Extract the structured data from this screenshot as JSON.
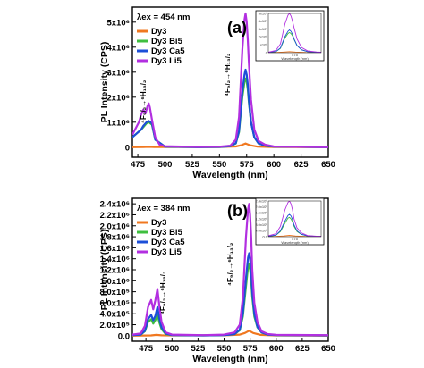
{
  "colors": {
    "Dy3": "#f07820",
    "Dy3 Bi5": "#3fbf3f",
    "Dy3 Ca5": "#1c4fd8",
    "Dy3 Li5": "#b22fe0"
  },
  "chart_data": [
    {
      "type": "line",
      "panel_label": "(a)",
      "excitation_label": "λex = 454 nm",
      "xlabel": "Wavelength (nm)",
      "ylabel": "PL Intensity (CPS)",
      "xlim": [
        470,
        650
      ],
      "ylim": [
        -400000,
        5600000
      ],
      "x_ticks": [
        "475",
        "500",
        "525",
        "550",
        "575",
        "600",
        "625",
        "650"
      ],
      "x_tick_values": [
        475,
        500,
        525,
        550,
        575,
        600,
        625,
        650
      ],
      "y_ticks": [
        "0",
        "1x10⁶",
        "2x10⁶",
        "3x10⁶",
        "4x10⁶",
        "5x10⁶"
      ],
      "y_tick_values": [
        0,
        1000000,
        2000000,
        3000000,
        4000000,
        5000000
      ],
      "legend": [
        "Dy3",
        "Dy3 Bi5",
        "Dy3 Ca5",
        "Dy3 Li5"
      ],
      "legend_position": "top-left",
      "annotations": [
        {
          "text": "⁴F₉/₂→⁶H₁₅/₂",
          "x": 485
        },
        {
          "text": "⁴F₉/₂→⁶H₁₃/₂",
          "x": 574
        }
      ],
      "series": [
        {
          "name": "Dy3",
          "x": [
            470,
            480,
            485,
            490,
            500,
            550,
            565,
            570,
            574,
            578,
            585,
            600,
            650
          ],
          "y": [
            0,
            5000,
            15000,
            8000,
            5000,
            8000,
            30000,
            80000,
            150000,
            80000,
            20000,
            5000,
            0
          ]
        },
        {
          "name": "Dy3 Bi5",
          "x": [
            470,
            478,
            480,
            483,
            485,
            488,
            491,
            500,
            530,
            550,
            560,
            565,
            568,
            571,
            573,
            574,
            575,
            576,
            577,
            579,
            582,
            586,
            592,
            600,
            650
          ],
          "y": [
            400000,
            700000,
            800000,
            950000,
            1000000,
            900000,
            300000,
            20000,
            0,
            10000,
            40000,
            150000,
            600000,
            2000000,
            2600000,
            2750000,
            2600000,
            2300000,
            1800000,
            1000000,
            400000,
            150000,
            60000,
            20000,
            0
          ]
        },
        {
          "name": "Dy3 Ca5",
          "x": [
            470,
            478,
            480,
            483,
            485,
            488,
            491,
            500,
            530,
            550,
            560,
            565,
            568,
            571,
            573,
            574,
            575,
            576,
            577,
            579,
            582,
            586,
            592,
            600,
            650
          ],
          "y": [
            400000,
            700000,
            850000,
            1000000,
            1050000,
            950000,
            300000,
            20000,
            0,
            10000,
            40000,
            160000,
            650000,
            2200000,
            2900000,
            3100000,
            2900000,
            2500000,
            1900000,
            1000000,
            400000,
            150000,
            60000,
            20000,
            0
          ]
        },
        {
          "name": "Dy3 Li5",
          "x": [
            470,
            476,
            478,
            480,
            482,
            484,
            485,
            486,
            488,
            491,
            495,
            500,
            530,
            550,
            560,
            565,
            568,
            571,
            573,
            574,
            575,
            576,
            577,
            579,
            582,
            586,
            592,
            600,
            650
          ],
          "y": [
            500000,
            1000000,
            1300000,
            1500000,
            1350000,
            1650000,
            1750000,
            1600000,
            1100000,
            400000,
            100000,
            40000,
            10000,
            20000,
            60000,
            300000,
            1200000,
            3900000,
            5100000,
            5350000,
            5000000,
            4300000,
            3400000,
            1900000,
            700000,
            250000,
            100000,
            30000,
            0
          ]
        }
      ]
    },
    {
      "type": "line",
      "panel_label": "(b)",
      "excitation_label": "λex = 384 nm",
      "xlabel": "Wavelength (nm)",
      "ylabel": "PL Intensity (CPS)",
      "xlim": [
        462,
        650
      ],
      "ylim": [
        -100000,
        2500000
      ],
      "x_ticks": [
        "475",
        "500",
        "525",
        "550",
        "575",
        "600",
        "625",
        "650"
      ],
      "x_tick_values": [
        475,
        500,
        525,
        550,
        575,
        600,
        625,
        650
      ],
      "y_ticks": [
        "0.0",
        "2.0x10⁵",
        "4.0x10⁵",
        "6.0x10⁵",
        "8.0x10⁵",
        "1.0x10⁶",
        "1.2x10⁶",
        "1.4x10⁶",
        "1.6x10⁶",
        "1.8x10⁶",
        "2.0x10⁶",
        "2.2x10⁶",
        "2.4x10⁶"
      ],
      "y_tick_values": [
        0,
        200000,
        400000,
        600000,
        800000,
        1000000,
        1200000,
        1400000,
        1600000,
        1800000,
        2000000,
        2200000,
        2400000
      ],
      "legend": [
        "Dy3",
        "Dy3 Bi5",
        "Dy3 Ca5",
        "Dy3 Li5"
      ],
      "legend_position": "top-left",
      "annotations": [
        {
          "text": "⁴F₉/₂→⁶H₁₅/₂",
          "x": 485
        },
        {
          "text": "⁴F₉/₂→⁶H₁₃/₂",
          "x": 574
        }
      ],
      "series": [
        {
          "name": "Dy3",
          "x": [
            462,
            480,
            485,
            490,
            500,
            550,
            565,
            570,
            574,
            578,
            585,
            600,
            650
          ],
          "y": [
            0,
            5000,
            15000,
            8000,
            5000,
            8000,
            20000,
            50000,
            90000,
            50000,
            15000,
            5000,
            0
          ]
        },
        {
          "name": "Dy3 Bi5",
          "x": [
            462,
            470,
            474,
            477,
            480,
            482,
            484,
            486,
            488,
            490,
            494,
            500,
            530,
            550,
            560,
            565,
            568,
            571,
            573,
            574,
            575,
            576,
            577,
            579,
            582,
            586,
            592,
            600,
            650
          ],
          "y": [
            10000,
            20000,
            80000,
            250000,
            300000,
            220000,
            280000,
            380000,
            230000,
            120000,
            30000,
            10000,
            5000,
            10000,
            30000,
            100000,
            350000,
            900000,
            1250000,
            1300000,
            1200000,
            1000000,
            700000,
            350000,
            150000,
            60000,
            20000,
            10000,
            5000
          ]
        },
        {
          "name": "Dy3 Ca5",
          "x": [
            462,
            470,
            474,
            477,
            480,
            482,
            484,
            486,
            488,
            490,
            494,
            500,
            530,
            550,
            560,
            565,
            568,
            571,
            573,
            574,
            575,
            576,
            577,
            579,
            582,
            586,
            592,
            600,
            650
          ],
          "y": [
            10000,
            20000,
            90000,
            300000,
            380000,
            280000,
            360000,
            520000,
            300000,
            150000,
            40000,
            10000,
            5000,
            10000,
            30000,
            110000,
            400000,
            1050000,
            1420000,
            1500000,
            1400000,
            1150000,
            800000,
            400000,
            160000,
            60000,
            20000,
            10000,
            5000
          ]
        },
        {
          "name": "Dy3 Li5",
          "x": [
            462,
            470,
            474,
            477,
            480,
            482,
            484,
            486,
            488,
            490,
            494,
            500,
            530,
            550,
            560,
            565,
            568,
            571,
            573,
            574,
            575,
            576,
            577,
            579,
            582,
            586,
            592,
            600,
            650
          ],
          "y": [
            20000,
            40000,
            180000,
            520000,
            650000,
            480000,
            640000,
            850000,
            520000,
            250000,
            60000,
            20000,
            10000,
            20000,
            60000,
            200000,
            700000,
            1800000,
            2300000,
            2400000,
            2200000,
            1800000,
            1200000,
            600000,
            250000,
            80000,
            30000,
            15000,
            10000
          ]
        }
      ]
    }
  ]
}
